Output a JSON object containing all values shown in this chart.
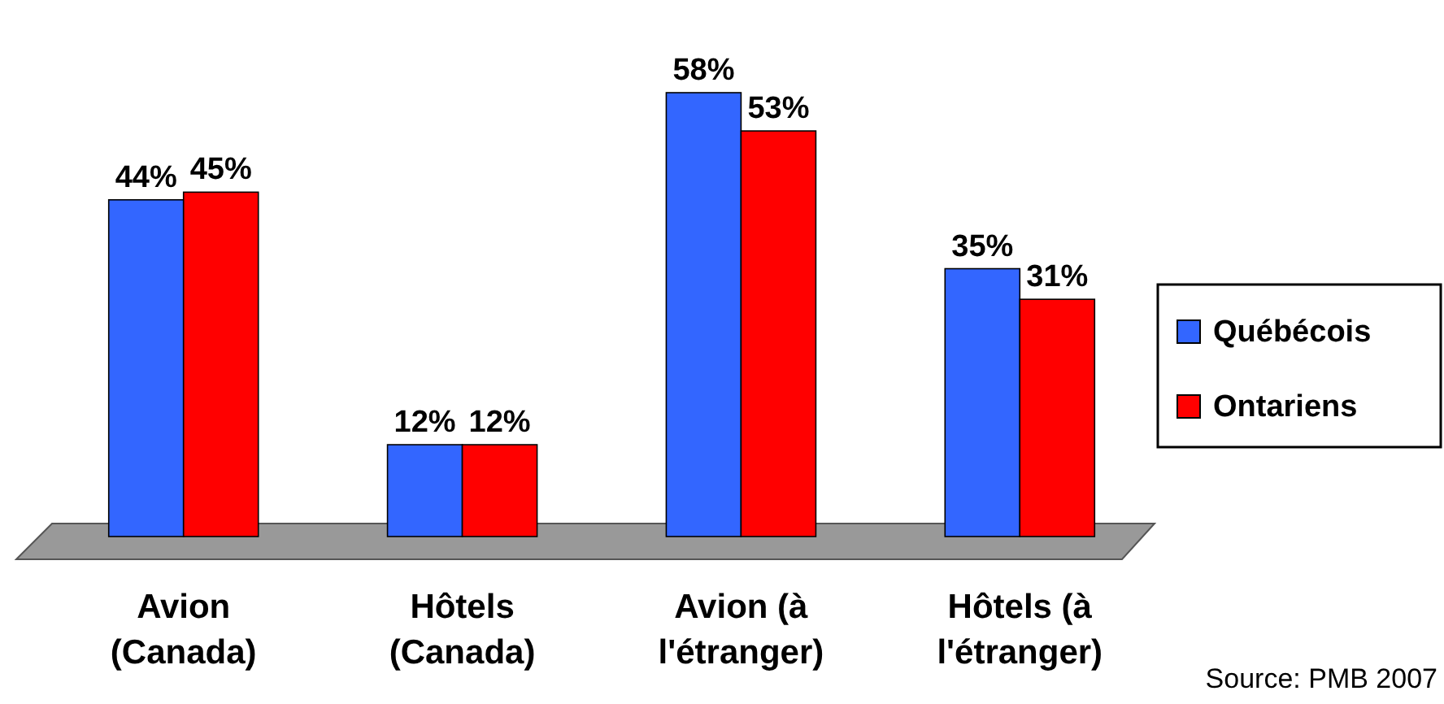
{
  "chart_data": {
    "type": "bar",
    "categories": [
      "Avion (Canada)",
      "Hôtels (Canada)",
      "Avion (à l'étranger)",
      "Hôtels (à l'étranger)"
    ],
    "series": [
      {
        "name": "Québécois",
        "color": "#3366ff",
        "values": [
          44,
          12,
          58,
          35
        ],
        "value_labels": [
          "44%",
          "12%",
          "58%",
          "35%"
        ]
      },
      {
        "name": "Ontariens",
        "color": "#ff0000",
        "values": [
          45,
          12,
          53,
          31
        ],
        "value_labels": [
          "45%",
          "12%",
          "53%",
          "31%"
        ]
      }
    ],
    "legend": "right",
    "annotations": [
      "Source: PMB 2007"
    ]
  }
}
